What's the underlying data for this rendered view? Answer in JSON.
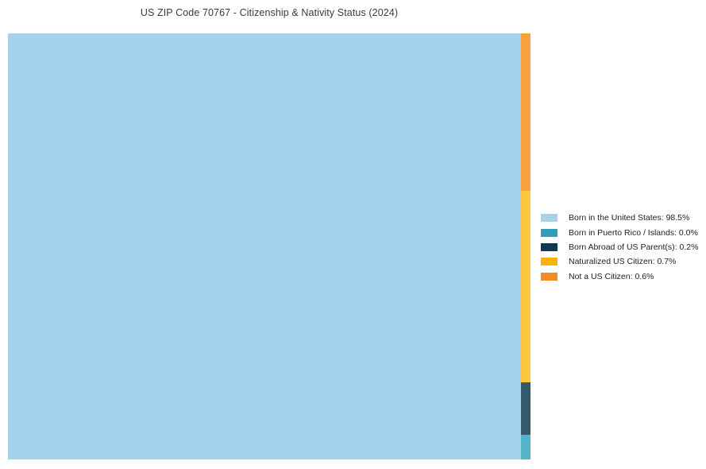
{
  "title": "US ZIP Code 70767 - Citizenship & Nativity Status (2024)",
  "chart_data": {
    "type": "treemap",
    "title": "US ZIP Code 70767 - Citizenship & Nativity Status (2024)",
    "unit": "%",
    "legend_position": "right",
    "grid": false,
    "series": [
      {
        "name": "Born in the United States",
        "value": 98.5,
        "legend_label": "Born in the United States: 98.5%",
        "legend_color": "#a8d2e8",
        "rect_color": "#a3d3ea"
      },
      {
        "name": "Born in Puerto Rico / Islands",
        "value": 0.0,
        "legend_label": "Born in Puerto Rico / Islands: 0.0%",
        "legend_color": "#2d9fba",
        "rect_color": "#54b4c8"
      },
      {
        "name": "Born Abroad of US Parent(s)",
        "value": 0.2,
        "legend_label": "Born Abroad of US Parent(s): 0.2%",
        "legend_color": "#0d3a50",
        "rect_color": "#35596b"
      },
      {
        "name": "Naturalized US Citizen",
        "value": 0.7,
        "legend_label": "Naturalized US Citizen: 0.7%",
        "legend_color": "#fdb10d",
        "rect_color": "#fdc83e"
      },
      {
        "name": "Not a US Citizen",
        "value": 0.6,
        "legend_label": "Not a US Citizen: 0.6%",
        "legend_color": "#f6891f",
        "rect_color": "#f9a13c"
      }
    ]
  }
}
